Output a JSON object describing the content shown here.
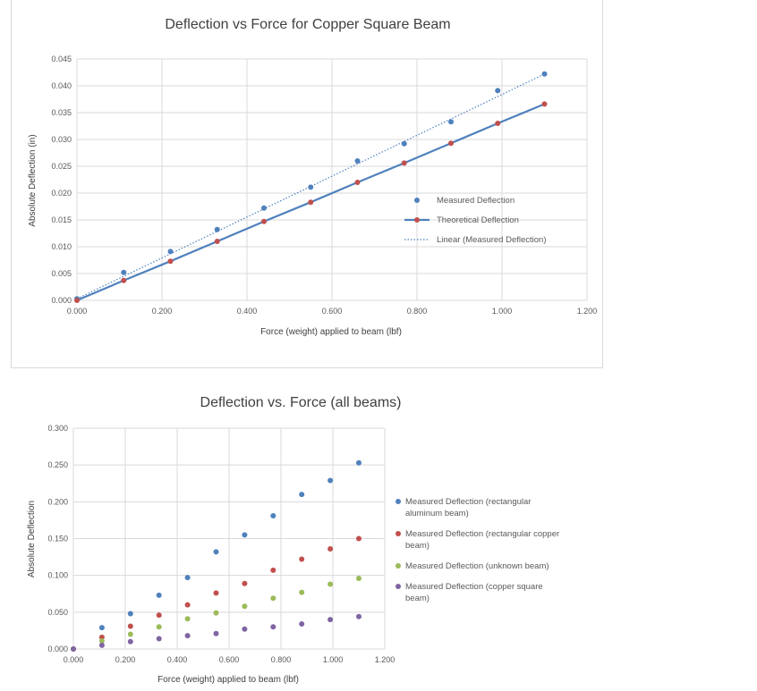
{
  "chart_data": [
    {
      "type": "scatter",
      "title": "Deflection vs Force for Copper Square Beam",
      "xlabel": "Force (weight) applied to beam (lbf)",
      "ylabel": "Absolute Deflection (in)",
      "xlim": [
        0,
        1.2
      ],
      "ylim": [
        0,
        0.045
      ],
      "xticks": [
        "0.000",
        "0.200",
        "0.400",
        "0.600",
        "0.800",
        "1.000",
        "1.200"
      ],
      "yticks": [
        "0.000",
        "0.005",
        "0.010",
        "0.015",
        "0.020",
        "0.025",
        "0.030",
        "0.035",
        "0.040",
        "0.045"
      ],
      "grid": true,
      "legend_position": "right",
      "series": [
        {
          "name": "Measured Deflection",
          "kind": "points",
          "color": "#4f81bd",
          "x": [
            0,
            0.11,
            0.22,
            0.33,
            0.44,
            0.55,
            0.66,
            0.77,
            0.88,
            0.99,
            1.1
          ],
          "y": [
            0.0003,
            0.0052,
            0.0091,
            0.0132,
            0.0172,
            0.0211,
            0.026,
            0.0292,
            0.0333,
            0.0391,
            0.0422
          ]
        },
        {
          "name": "Theoretical Deflection",
          "kind": "line-with-markers",
          "color": "#c0504d",
          "line_color": "#4f81bd",
          "x": [
            0,
            0.11,
            0.22,
            0.33,
            0.44,
            0.55,
            0.66,
            0.77,
            0.88,
            0.99,
            1.1
          ],
          "y": [
            0,
            0.0037,
            0.0073,
            0.011,
            0.0147,
            0.0183,
            0.022,
            0.0256,
            0.0293,
            0.033,
            0.0366
          ]
        },
        {
          "name": "Linear (Measured Deflection)",
          "kind": "dotted-trendline",
          "color": "#4f81bd",
          "x": [
            0,
            1.1
          ],
          "y": [
            0.0003,
            0.0422
          ]
        }
      ]
    },
    {
      "type": "scatter",
      "title": "Deflection vs. Force (all beams)",
      "xlabel": "Force (weight) applied to beam (lbf)",
      "ylabel": "Absolute Deflection",
      "xlim": [
        0,
        1.2
      ],
      "ylim": [
        0,
        0.3
      ],
      "xticks": [
        "0.000",
        "0.200",
        "0.400",
        "0.600",
        "0.800",
        "1.000",
        "1.200"
      ],
      "yticks": [
        "0.000",
        "0.050",
        "0.100",
        "0.150",
        "0.200",
        "0.250",
        "0.300"
      ],
      "grid": true,
      "legend_position": "right",
      "series": [
        {
          "name": "Measured Deflection (rectangular aluminum beam)",
          "legend_lines": [
            "Measured Deflection (rectangular",
            "aluminum beam)"
          ],
          "color": "#4f81bd",
          "x": [
            0,
            0.11,
            0.22,
            0.33,
            0.44,
            0.55,
            0.66,
            0.77,
            0.88,
            0.99,
            1.1
          ],
          "y": [
            0,
            0.029,
            0.048,
            0.073,
            0.097,
            0.132,
            0.155,
            0.181,
            0.21,
            0.229,
            0.253
          ]
        },
        {
          "name": "Measured Deflection (rectangular copper beam)",
          "legend_lines": [
            "Measured Deflection (rectangular copper",
            "beam)"
          ],
          "color": "#c0504d",
          "x": [
            0,
            0.11,
            0.22,
            0.33,
            0.44,
            0.55,
            0.66,
            0.77,
            0.88,
            0.99,
            1.1
          ],
          "y": [
            0,
            0.016,
            0.031,
            0.046,
            0.06,
            0.076,
            0.089,
            0.107,
            0.122,
            0.136,
            0.15
          ]
        },
        {
          "name": "Measured Deflection (unknown beam)",
          "legend_lines": [
            "Measured Deflection (unknown beam)"
          ],
          "color": "#9bbb59",
          "x": [
            0,
            0.11,
            0.22,
            0.33,
            0.44,
            0.55,
            0.66,
            0.77,
            0.88,
            0.99,
            1.1
          ],
          "y": [
            0,
            0.011,
            0.02,
            0.03,
            0.041,
            0.049,
            0.058,
            0.069,
            0.077,
            0.088,
            0.096
          ]
        },
        {
          "name": "Measured Deflection (copper square beam)",
          "legend_lines": [
            "Measured Deflection (copper square",
            "beam)"
          ],
          "color": "#8064a2",
          "x": [
            0,
            0.11,
            0.22,
            0.33,
            0.44,
            0.55,
            0.66,
            0.77,
            0.88,
            0.99,
            1.1
          ],
          "y": [
            0,
            0.005,
            0.01,
            0.014,
            0.018,
            0.021,
            0.027,
            0.03,
            0.034,
            0.04,
            0.044
          ]
        }
      ]
    }
  ]
}
